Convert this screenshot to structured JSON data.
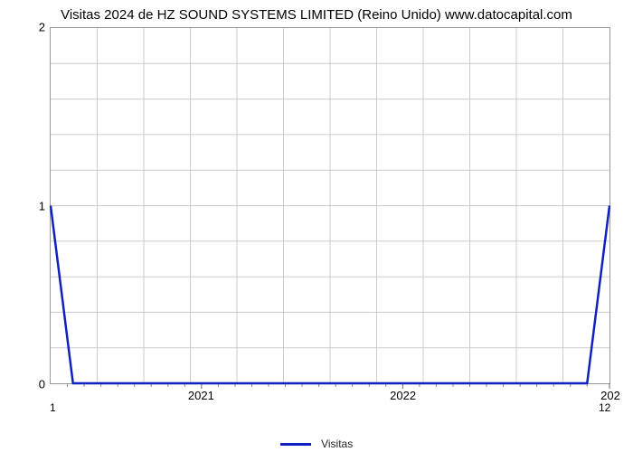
{
  "chart": {
    "type": "line",
    "title": "Visitas 2024 de HZ SOUND SYSTEMS LIMITED (Reino Unido) www.datocapital.com",
    "title_fontsize": 15,
    "background_color": "#ffffff",
    "plot_border_color": "#999999",
    "grid": {
      "on": true,
      "color": "#cccccc",
      "line_width": 1
    },
    "x_axis": {
      "domain": [
        0,
        1
      ],
      "major_ticks": [
        {
          "pos": 0.27,
          "label": "2021"
        },
        {
          "pos": 0.63,
          "label": "2022"
        },
        {
          "pos": 1.0,
          "label": "202"
        }
      ],
      "minor_tick_positions": [
        0.03,
        0.06,
        0.09,
        0.12,
        0.15,
        0.18,
        0.21,
        0.24,
        0.3,
        0.33,
        0.36,
        0.39,
        0.42,
        0.45,
        0.48,
        0.51,
        0.54,
        0.57,
        0.6,
        0.66,
        0.69,
        0.72,
        0.75,
        0.78,
        0.81,
        0.84,
        0.87,
        0.9,
        0.93,
        0.96
      ],
      "minor_tick_length": 4,
      "minor_tick_color": "#888888",
      "left_edge_label": "1",
      "right_edge_label": "12",
      "label_fontsize": 13
    },
    "y_axis": {
      "lim": [
        0,
        2
      ],
      "ticks": [
        0,
        1,
        2
      ],
      "label_fontsize": 13,
      "minor_grid_positions": [
        0.2,
        0.4,
        0.6,
        0.8,
        1.2,
        1.4,
        1.6,
        1.8
      ]
    },
    "vertical_grid_positions": [
      0.0833,
      0.1667,
      0.25,
      0.3333,
      0.4167,
      0.5,
      0.5833,
      0.6667,
      0.75,
      0.8333,
      0.9167
    ],
    "series": {
      "name": "Visitas",
      "color": "#1020c0",
      "line_width": 2.5,
      "points": [
        {
          "x": 0.0,
          "y": 1.0
        },
        {
          "x": 0.04,
          "y": 0.0
        },
        {
          "x": 0.96,
          "y": 0.0
        },
        {
          "x": 1.0,
          "y": 1.0
        }
      ]
    },
    "legend": {
      "position": "bottom-center",
      "label": "Visitas",
      "line_color": "#1020c0",
      "fontsize": 12
    }
  }
}
